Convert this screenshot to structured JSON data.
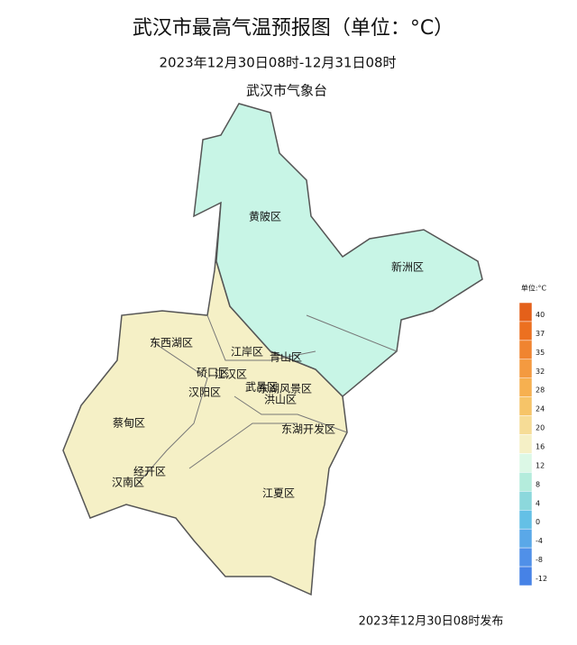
{
  "header": {
    "title": "武汉市最高气温预报图（单位：°C）",
    "subtitle": "2023年12月30日08时-12月31日08时",
    "issuer": "武汉市气象台"
  },
  "districts": [
    "黄陂区",
    "新洲区",
    "东西湖区",
    "江岸区",
    "青山区",
    "硚口区",
    "江汉区",
    "汉阳区",
    "武昌区",
    "洪山区",
    "东湖风景区",
    "蔡甸区",
    "东湖开发区",
    "经开区",
    "汉南区",
    "江夏区"
  ],
  "legend": {
    "title": "单位:°C",
    "levels": [
      {
        "value": 40,
        "color": "#e4601a"
      },
      {
        "value": 37,
        "color": "#ec7020"
      },
      {
        "value": 35,
        "color": "#f08430"
      },
      {
        "value": 32,
        "color": "#f49a40"
      },
      {
        "value": 28,
        "color": "#f6b050"
      },
      {
        "value": 24,
        "color": "#f6c468"
      },
      {
        "value": 20,
        "color": "#f6dc96"
      },
      {
        "value": 16,
        "color": "#f5f0c6"
      },
      {
        "value": 12,
        "color": "#dcf8e6"
      },
      {
        "value": 8,
        "color": "#b4ecdc"
      },
      {
        "value": 4,
        "color": "#8cd8dc"
      },
      {
        "value": 0,
        "color": "#64c0e6"
      },
      {
        "value": -4,
        "color": "#5aa8e8"
      },
      {
        "value": -8,
        "color": "#5090e8"
      },
      {
        "value": -12,
        "color": "#4682e6"
      }
    ]
  },
  "footer": "2023年12月30日08时发布"
}
